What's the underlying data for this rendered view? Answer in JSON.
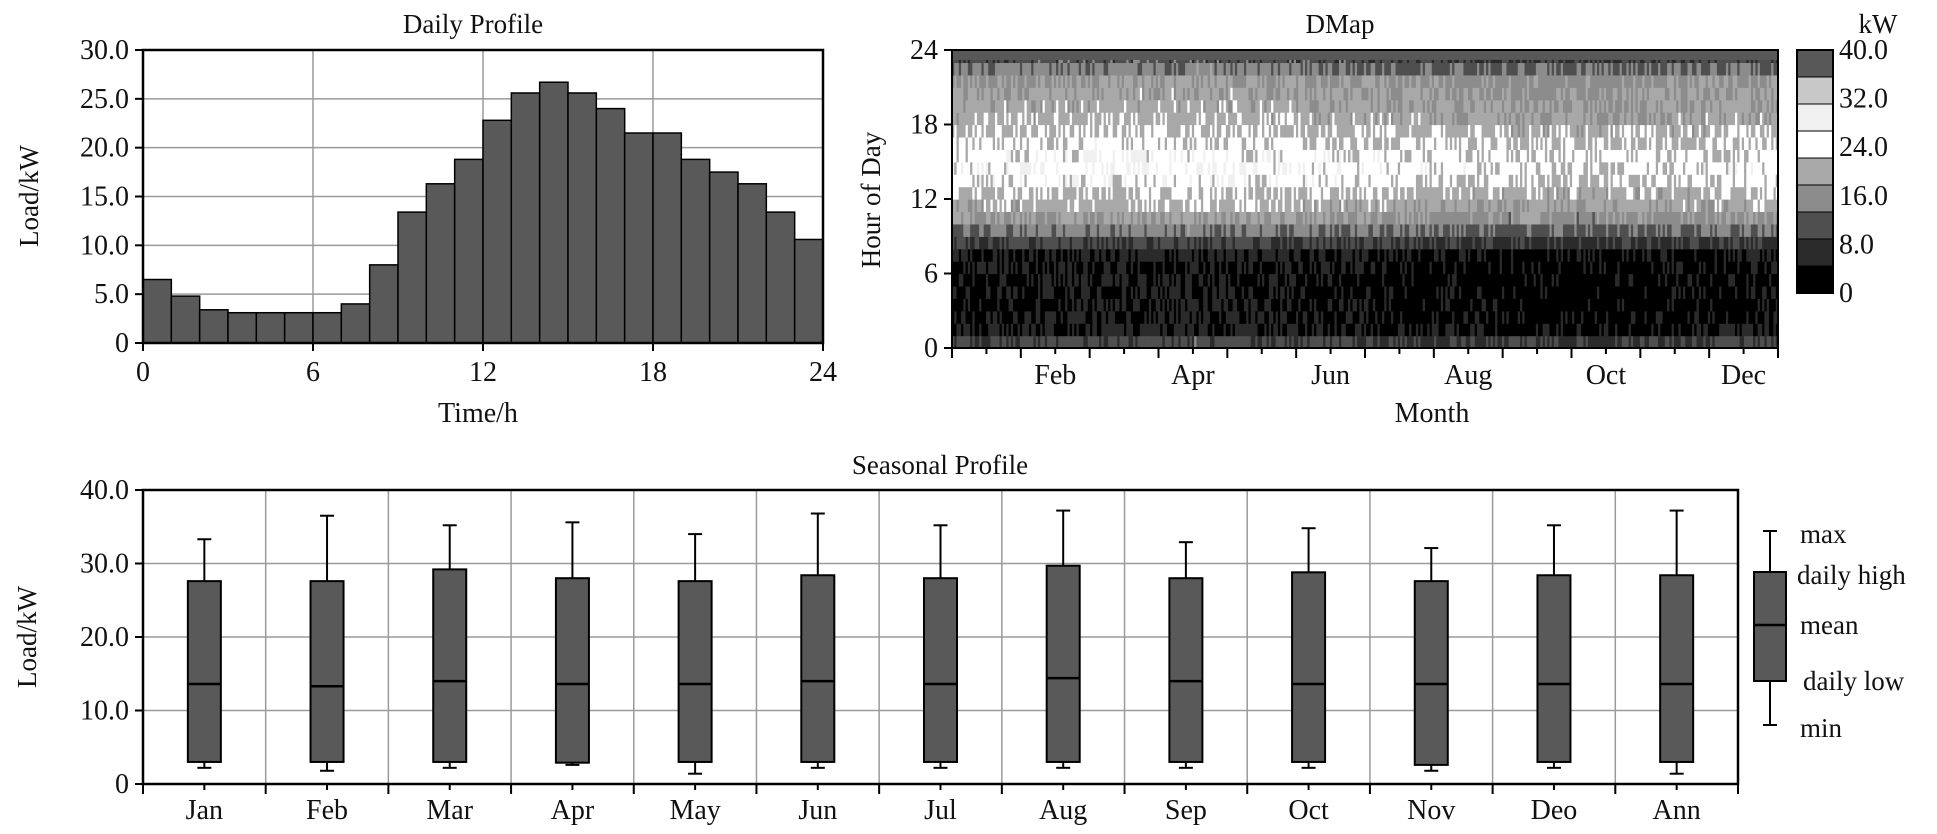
{
  "chart_data": [
    {
      "id": "daily",
      "type": "bar",
      "title": "Daily Profile",
      "xlabel": "Time/h",
      "ylabel": "Load/kW",
      "x_ticks": [
        "0",
        "6",
        "12",
        "18",
        "24"
      ],
      "y_ticks": [
        "0",
        "5.0",
        "10.0",
        "15.0",
        "20.0",
        "25.0",
        "30.0"
      ],
      "xlim": [
        0,
        24
      ],
      "ylim": [
        0,
        30
      ],
      "grid": true,
      "bar_color": "#595959",
      "hours": [
        0,
        1,
        2,
        3,
        4,
        5,
        6,
        7,
        8,
        9,
        10,
        11,
        12,
        13,
        14,
        15,
        16,
        17,
        18,
        19,
        20,
        21,
        22,
        23
      ],
      "values": [
        6.5,
        4.8,
        3.4,
        3.1,
        3.1,
        3.1,
        3.1,
        4.0,
        8.0,
        13.4,
        16.3,
        18.8,
        22.8,
        25.6,
        26.7,
        25.6,
        24.0,
        21.5,
        21.5,
        18.8,
        17.5,
        16.3,
        13.4,
        10.6
      ]
    },
    {
      "id": "dmap",
      "type": "heatmap",
      "title": "DMap",
      "xlabel": "Month",
      "ylabel": "Hour of Day",
      "x_ticks": [
        "Feb",
        "Apr",
        "Jun",
        "Aug",
        "Oct",
        "Dec"
      ],
      "y_ticks": [
        "0",
        "6",
        "12",
        "18",
        "24"
      ],
      "colorbar_unit": "kW",
      "colorbar_ticks": [
        "0",
        "8.0",
        "16.0",
        "24.0",
        "32.0",
        "40.0"
      ],
      "colorbar_levels": [
        "#000000",
        "#2b2b2b",
        "#4f4f4f",
        "#8c8c8c",
        "#a8a8a8",
        "#ffffff",
        "#f0f0f0",
        "#c8c8c8",
        "#585858"
      ],
      "days": 365,
      "hourly_mean_level": [
        1.6,
        0.5,
        0.3,
        0.2,
        0.2,
        0.2,
        0.3,
        0.5,
        1.5,
        2.6,
        3.4,
        4.0,
        4.3,
        4.8,
        5.0,
        4.9,
        4.6,
        4.3,
        4.0,
        3.8,
        3.6,
        3.4,
        2.6,
        1.8
      ]
    },
    {
      "id": "seasonal",
      "type": "box",
      "title": "Seasonal Profile",
      "xlabel": "",
      "ylabel": "Load/kW",
      "y_ticks": [
        "0",
        "10.0",
        "20.0",
        "30.0",
        "40.0"
      ],
      "ylim": [
        0,
        40
      ],
      "grid": true,
      "box_color": "#595959",
      "categories": [
        "Jan",
        "Feb",
        "Mar",
        "Apr",
        "May",
        "Jun",
        "Jul",
        "Aug",
        "Sep",
        "Oct",
        "Nov",
        "Deo",
        "Ann"
      ],
      "max": [
        33.3,
        36.5,
        35.2,
        35.6,
        34.0,
        36.8,
        35.2,
        37.2,
        32.9,
        34.8,
        32.1,
        35.2,
        37.2
      ],
      "daily_high": [
        27.6,
        27.6,
        29.2,
        28.0,
        27.6,
        28.4,
        28.0,
        29.7,
        28.0,
        28.8,
        27.6,
        28.4,
        28.4
      ],
      "mean": [
        13.6,
        13.3,
        14.0,
        13.6,
        13.6,
        14.0,
        13.6,
        14.4,
        14.0,
        13.6,
        13.6,
        13.6,
        13.6
      ],
      "daily_low": [
        3.0,
        3.0,
        3.0,
        2.9,
        3.0,
        3.0,
        3.0,
        3.0,
        3.0,
        3.0,
        2.6,
        3.0,
        3.0
      ],
      "min": [
        2.2,
        1.8,
        2.2,
        2.6,
        1.4,
        2.2,
        2.2,
        2.2,
        2.2,
        2.2,
        1.8,
        2.2,
        1.4
      ],
      "legend_labels": [
        "max",
        "daily high",
        "mean",
        "daily low",
        "min"
      ],
      "legend_position": "right"
    }
  ]
}
